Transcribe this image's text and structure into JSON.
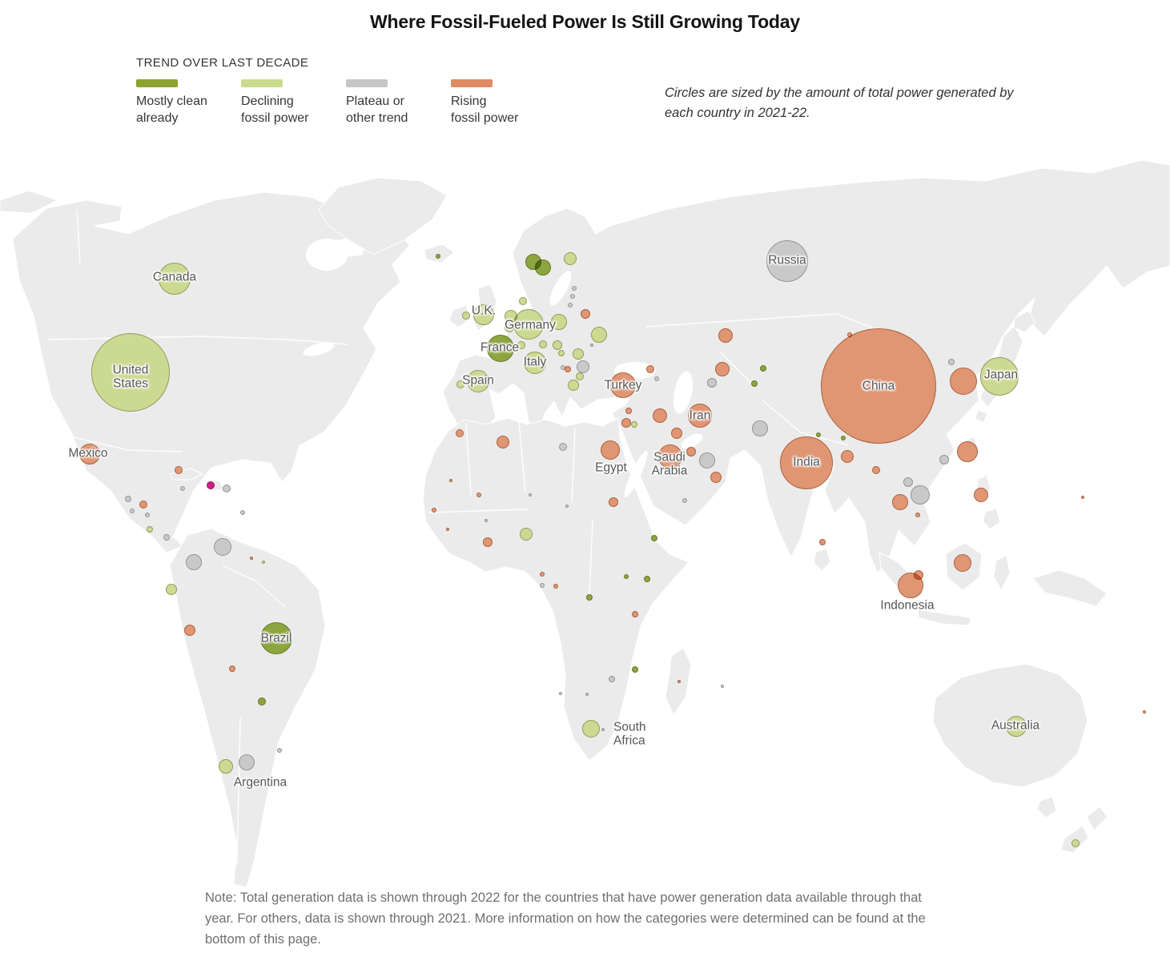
{
  "title": "Where Fossil-Fueled Power Is Still Growing Today",
  "legend": {
    "heading": "TREND OVER LAST DECADE",
    "items": [
      {
        "key": "clean",
        "label": "Mostly clean\nalready",
        "color": "#8ca32f"
      },
      {
        "key": "declining",
        "label": "Declining\nfossil power",
        "color": "#ccdb8d"
      },
      {
        "key": "plateau",
        "label": "Plateau or\nother trend",
        "color": "#c6c6c6"
      },
      {
        "key": "rising",
        "label": "Rising\nfossil power",
        "color": "#e08a63"
      }
    ]
  },
  "caption": "Circles are sized by the amount of total power generated by each country in 2021-22.",
  "note": "Note: Total generation data is shown through 2022 for the countries that have power generation data available through that year. For others, data is shown through 2021. More information on how the categories were determined can be found at the bottom of this page.",
  "chart_data": {
    "type": "bubble_map",
    "title": "Where Fossil-Fueled Power Is Still Growing Today",
    "size_encoding": "Circle area proportional to total power generated by each country in 2021-22",
    "color_encoding": "Trend over last decade",
    "trend_styles": {
      "clean": {
        "fill": "#87a134",
        "stroke": "#5c731d"
      },
      "declining": {
        "fill": "#cbd98c",
        "stroke": "#8e9455"
      },
      "plateau": {
        "fill": "#c7c7c7",
        "stroke": "#8f8f8f"
      },
      "rising": {
        "fill": "#e0906c",
        "stroke": "#a55c36"
      },
      "highlight": {
        "fill": "#cd1380",
        "stroke": "#8d0d57"
      }
    },
    "bubble_fields": [
      "country",
      "x_px",
      "y_px",
      "radius_px",
      "trend"
    ],
    "bubbles": [
      [
        "canada",
        218,
        348,
        20,
        "declining"
      ],
      [
        "united-states",
        163,
        465,
        49,
        "declining"
      ],
      [
        "mexico",
        112,
        567,
        13,
        "rising"
      ],
      [
        "guatemala",
        160,
        623,
        4,
        "plateau"
      ],
      [
        "honduras",
        179,
        630,
        5,
        "rising"
      ],
      [
        "nicaragua",
        165,
        638,
        3,
        "plateau"
      ],
      [
        "el-salvador",
        184,
        643,
        3,
        "plateau"
      ],
      [
        "costa-rica",
        187,
        661,
        4,
        "declining"
      ],
      [
        "panama",
        208,
        671,
        4,
        "plateau"
      ],
      [
        "cuba",
        223,
        587,
        5,
        "rising"
      ],
      [
        "jamaica",
        228,
        610,
        3,
        "plateau"
      ],
      [
        "dominican-republic",
        263,
        606,
        5,
        "highlight"
      ],
      [
        "puerto-rico",
        283,
        610,
        5,
        "plateau"
      ],
      [
        "trinidad-and-tobago",
        303,
        640,
        3,
        "plateau"
      ],
      [
        "venezuela",
        278,
        683,
        11,
        "plateau"
      ],
      [
        "colombia",
        242,
        702,
        10,
        "plateau"
      ],
      [
        "guyana",
        314,
        697,
        2,
        "rising"
      ],
      [
        "suriname",
        329,
        702,
        2,
        "declining"
      ],
      [
        "ecuador",
        214,
        736,
        7,
        "declining"
      ],
      [
        "peru",
        237,
        787,
        7,
        "rising"
      ],
      [
        "brazil",
        345,
        797,
        20,
        "clean"
      ],
      [
        "bolivia",
        290,
        835,
        4,
        "rising"
      ],
      [
        "paraguay",
        327,
        876,
        5,
        "clean"
      ],
      [
        "uruguay",
        349,
        937,
        3,
        "plateau"
      ],
      [
        "chile",
        282,
        957,
        9,
        "declining"
      ],
      [
        "argentina",
        308,
        952,
        10,
        "plateau"
      ],
      [
        "iceland",
        547,
        320,
        3,
        "clean"
      ],
      [
        "ireland",
        582,
        394,
        5,
        "declining"
      ],
      [
        "united-kingdom",
        604,
        393,
        13,
        "declining"
      ],
      [
        "norway",
        666,
        327,
        10,
        "clean"
      ],
      [
        "sweden",
        678,
        334,
        10,
        "clean"
      ],
      [
        "finland",
        712,
        323,
        8,
        "declining"
      ],
      [
        "denmark",
        653,
        376,
        5,
        "declining"
      ],
      [
        "netherlands",
        638,
        395,
        8,
        "declining"
      ],
      [
        "belgium",
        636,
        409,
        6,
        "declining"
      ],
      [
        "germany",
        660,
        405,
        19,
        "declining"
      ],
      [
        "poland",
        698,
        402,
        10,
        "declining"
      ],
      [
        "czech-republic",
        696,
        431,
        6,
        "declining"
      ],
      [
        "austria",
        678,
        430,
        5,
        "declining"
      ],
      [
        "switzerland",
        651,
        431,
        5,
        "declining"
      ],
      [
        "france",
        625,
        435,
        17,
        "clean"
      ],
      [
        "portugal",
        575,
        480,
        5,
        "declining"
      ],
      [
        "spain",
        597,
        476,
        14,
        "declining"
      ],
      [
        "italy",
        668,
        453,
        14,
        "declining"
      ],
      [
        "slovakia",
        701,
        441,
        4,
        "declining"
      ],
      [
        "hungary",
        722,
        442,
        7,
        "declining"
      ],
      [
        "romania",
        728,
        458,
        8,
        "plateau"
      ],
      [
        "croatia",
        703,
        459,
        3,
        "plateau"
      ],
      [
        "serbia",
        709,
        461,
        4,
        "rising"
      ],
      [
        "bulgaria",
        724,
        470,
        5,
        "declining"
      ],
      [
        "greece",
        716,
        481,
        7,
        "declining"
      ],
      [
        "estonia",
        717,
        360,
        3,
        "plateau"
      ],
      [
        "latvia",
        715,
        370,
        3,
        "plateau"
      ],
      [
        "lithuania",
        712,
        381,
        3,
        "plateau"
      ],
      [
        "belarus",
        731,
        392,
        6,
        "rising"
      ],
      [
        "ukraine",
        748,
        418,
        10,
        "declining"
      ],
      [
        "moldova",
        739,
        431,
        2,
        "plateau"
      ],
      [
        "russia",
        983,
        326,
        26,
        "plateau"
      ],
      [
        "turkey",
        778,
        481,
        16,
        "rising"
      ],
      [
        "georgia",
        820,
        473,
        3,
        "plateau"
      ],
      [
        "azerbaijan",
        812,
        461,
        5,
        "rising"
      ],
      [
        "syria",
        785,
        513,
        4,
        "rising"
      ],
      [
        "israel",
        782,
        528,
        6,
        "rising"
      ],
      [
        "jordan",
        792,
        530,
        4,
        "declining"
      ],
      [
        "iraq",
        824,
        519,
        9,
        "rising"
      ],
      [
        "iran",
        874,
        519,
        15,
        "rising"
      ],
      [
        "kuwait",
        845,
        541,
        7,
        "rising"
      ],
      [
        "saudi-arabia",
        837,
        570,
        15,
        "rising"
      ],
      [
        "qatar",
        863,
        564,
        6,
        "rising"
      ],
      [
        "united-arab-emirates",
        883,
        575,
        10,
        "plateau"
      ],
      [
        "oman",
        894,
        596,
        7,
        "rising"
      ],
      [
        "yemen",
        855,
        625,
        3,
        "plateau"
      ],
      [
        "kazakhstan",
        906,
        419,
        9,
        "rising"
      ],
      [
        "uzbekistan",
        902,
        461,
        9,
        "rising"
      ],
      [
        "turkmenistan",
        889,
        478,
        6,
        "plateau"
      ],
      [
        "kyrgyzstan",
        953,
        460,
        4,
        "clean"
      ],
      [
        "tajikistan",
        942,
        479,
        4,
        "clean"
      ],
      [
        "pakistan",
        949,
        535,
        10,
        "plateau"
      ],
      [
        "mongolia",
        1061,
        418,
        3,
        "rising"
      ],
      [
        "india",
        1007,
        578,
        33,
        "rising"
      ],
      [
        "nepal",
        1022,
        543,
        3,
        "clean"
      ],
      [
        "bhutan",
        1053,
        547,
        3,
        "clean"
      ],
      [
        "bangladesh",
        1058,
        570,
        8,
        "rising"
      ],
      [
        "sri-lanka",
        1027,
        677,
        4,
        "rising"
      ],
      [
        "myanmar",
        1094,
        587,
        5,
        "rising"
      ],
      [
        "china",
        1097,
        482,
        72,
        "rising"
      ],
      [
        "north-korea",
        1188,
        452,
        4,
        "plateau"
      ],
      [
        "south-korea",
        1203,
        476,
        17,
        "rising"
      ],
      [
        "japan",
        1248,
        470,
        24,
        "declining"
      ],
      [
        "taiwan",
        1208,
        564,
        13,
        "rising"
      ],
      [
        "hong-kong",
        1179,
        574,
        6,
        "plateau"
      ],
      [
        "laos",
        1134,
        602,
        6,
        "plateau"
      ],
      [
        "vietnam",
        1149,
        618,
        12,
        "plateau"
      ],
      [
        "thailand",
        1124,
        627,
        10,
        "rising"
      ],
      [
        "cambodia",
        1146,
        643,
        3,
        "rising"
      ],
      [
        "philippines",
        1225,
        618,
        9,
        "rising"
      ],
      [
        "malaysia",
        1202,
        703,
        11,
        "rising"
      ],
      [
        "singapore",
        1147,
        718,
        6,
        "rising"
      ],
      [
        "indonesia",
        1137,
        731,
        16,
        "rising"
      ],
      [
        "guam",
        1352,
        621,
        2,
        "rising"
      ],
      [
        "morocco",
        574,
        541,
        5,
        "rising"
      ],
      [
        "algeria",
        628,
        552,
        8,
        "rising"
      ],
      [
        "libya",
        703,
        558,
        5,
        "plateau"
      ],
      [
        "egypt",
        762,
        562,
        12,
        "rising"
      ],
      [
        "mali",
        563,
        600,
        2,
        "rising"
      ],
      [
        "burkina-faso",
        598,
        618,
        3,
        "rising"
      ],
      [
        "niger",
        662,
        618,
        2,
        "plateau"
      ],
      [
        "chad",
        708,
        632,
        2,
        "plateau"
      ],
      [
        "sudan",
        766,
        627,
        6,
        "rising"
      ],
      [
        "senegal",
        542,
        637,
        3,
        "rising"
      ],
      [
        "guinea",
        559,
        661,
        2,
        "rising"
      ],
      [
        "ivory-coast",
        607,
        650,
        2,
        "plateau"
      ],
      [
        "ghana",
        609,
        677,
        6,
        "rising"
      ],
      [
        "nigeria",
        657,
        667,
        8,
        "declining"
      ],
      [
        "cameroon",
        677,
        717,
        3,
        "rising"
      ],
      [
        "gabon",
        677,
        731,
        3,
        "plateau"
      ],
      [
        "republic-of-congo",
        694,
        732,
        3,
        "rising"
      ],
      [
        "dr-congo",
        736,
        746,
        4,
        "clean"
      ],
      [
        "ethiopia",
        817,
        672,
        4,
        "clean"
      ],
      [
        "uganda",
        782,
        720,
        3,
        "clean"
      ],
      [
        "kenya",
        808,
        723,
        4,
        "clean"
      ],
      [
        "tanzania",
        793,
        767,
        4,
        "rising"
      ],
      [
        "mozambique",
        793,
        836,
        4,
        "clean"
      ],
      [
        "zimbabwe",
        764,
        848,
        4,
        "plateau"
      ],
      [
        "namibia",
        700,
        866,
        2,
        "plateau"
      ],
      [
        "botswana",
        733,
        867,
        2,
        "plateau"
      ],
      [
        "south-africa",
        738,
        910,
        11,
        "declining"
      ],
      [
        "lesotho",
        753,
        911,
        2,
        "plateau"
      ],
      [
        "madagascar",
        848,
        851,
        2,
        "rising"
      ],
      [
        "mauritius",
        902,
        857,
        2,
        "plateau"
      ],
      [
        "australia",
        1269,
        907,
        13,
        "declining"
      ],
      [
        "new-zealand",
        1343,
        1053,
        5,
        "declining"
      ],
      [
        "new-caledonia",
        1429,
        889,
        2,
        "rising"
      ]
    ],
    "label_fields": [
      "text",
      "x_px",
      "y_px",
      "anchor"
    ],
    "labels": [
      [
        "Canada",
        218,
        346,
        "center"
      ],
      [
        "United\nStates",
        163,
        471,
        "center"
      ],
      [
        "Mexico",
        110,
        566,
        "center"
      ],
      [
        "Brazil",
        345,
        797,
        "center"
      ],
      [
        "Argentina",
        325,
        977,
        "center"
      ],
      [
        "U.K.",
        604,
        388,
        "center"
      ],
      [
        "Spain",
        597,
        475,
        "center"
      ],
      [
        "France",
        624,
        434,
        "center"
      ],
      [
        "Germany",
        662,
        406,
        "center"
      ],
      [
        "Italy",
        668,
        452,
        "center"
      ],
      [
        "Russia",
        983,
        325,
        "center"
      ],
      [
        "Turkey",
        778,
        481,
        "center"
      ],
      [
        "Iran",
        874,
        519,
        "center"
      ],
      [
        "Egypt",
        763,
        584,
        "center"
      ],
      [
        "Saudi\nArabia",
        836,
        580,
        "center"
      ],
      [
        "China",
        1097,
        482,
        "center"
      ],
      [
        "India",
        1007,
        577,
        "center"
      ],
      [
        "Japan",
        1250,
        468,
        "center"
      ],
      [
        "Indonesia",
        1133,
        756,
        "center"
      ],
      [
        "South\nAfrica",
        766,
        917,
        "left"
      ],
      [
        "Australia",
        1268,
        906,
        "center"
      ]
    ]
  }
}
